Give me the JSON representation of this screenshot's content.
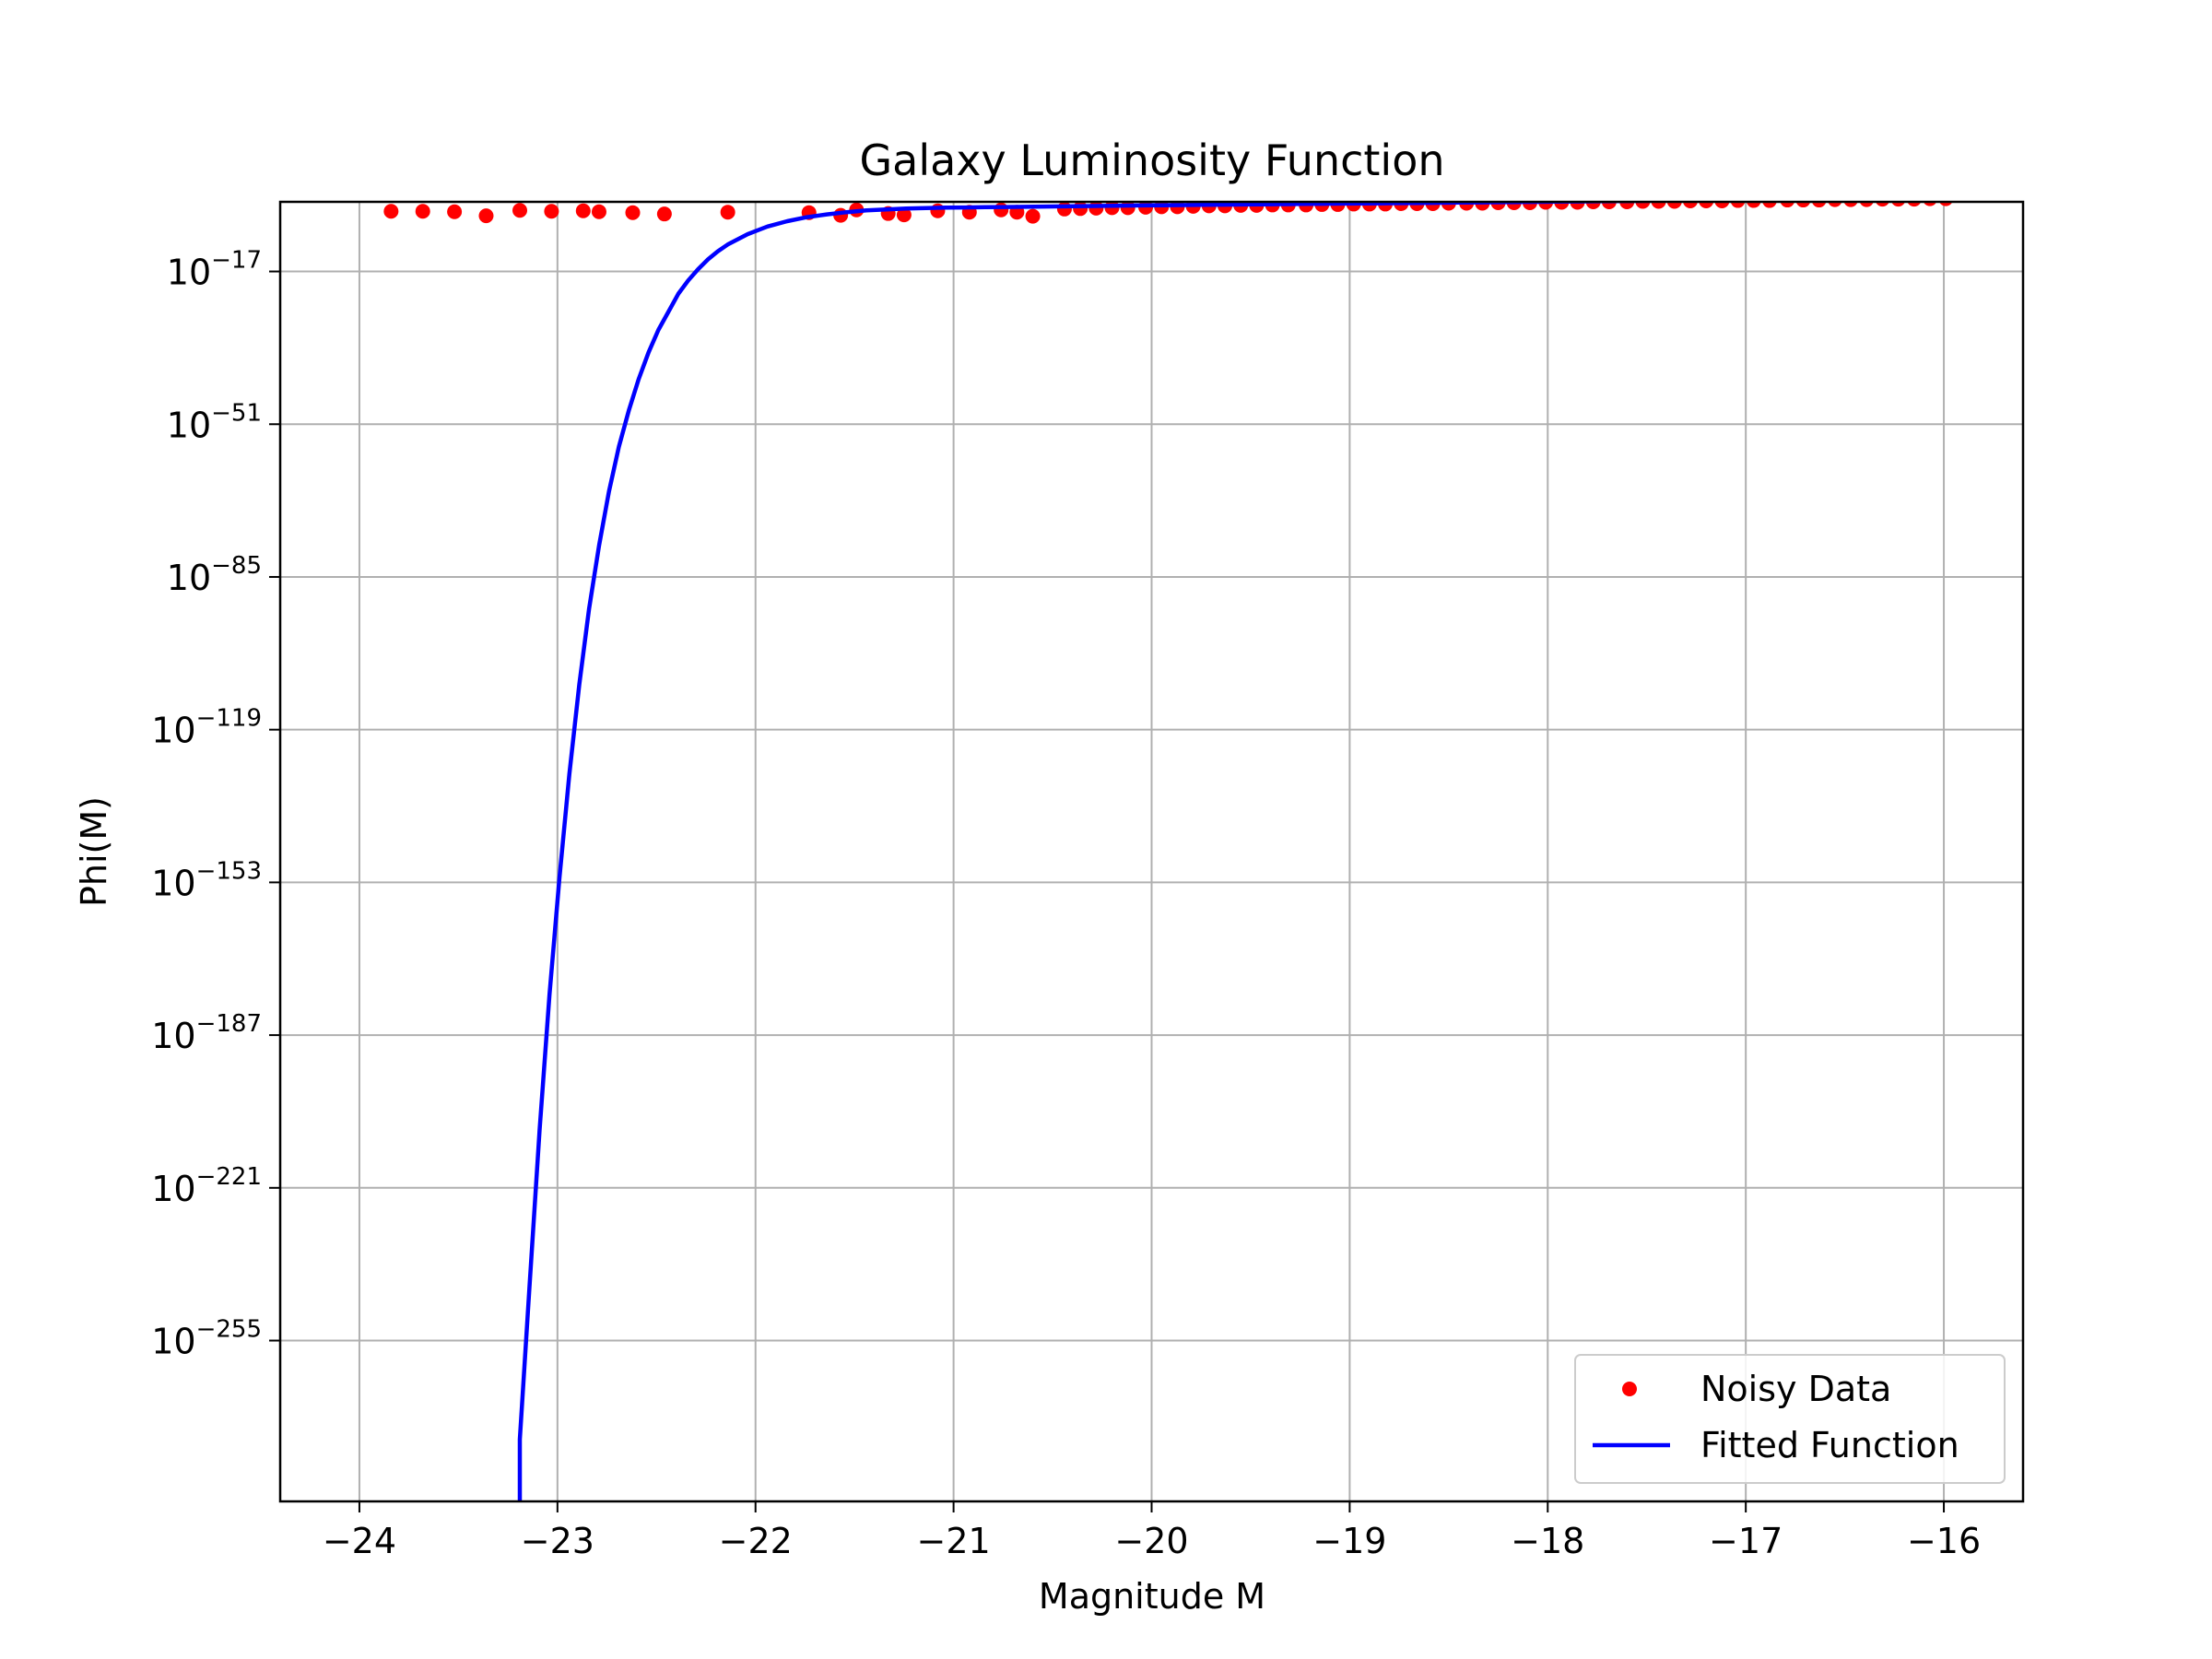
{
  "chart_data": {
    "type": "scatter",
    "title": "Galaxy Luminosity Function",
    "xlabel": "Magnitude M",
    "ylabel": "Phi(M)",
    "xlim": [
      -24.4,
      -15.6
    ],
    "x_ticks": [
      -24,
      -23,
      -22,
      -21,
      -20,
      -19,
      -18,
      -17,
      -16
    ],
    "y_scale": "log",
    "ylim_log10": [
      -290.8,
      -1.5
    ],
    "y_ticks_log10": [
      -17,
      -51,
      -85,
      -119,
      -153,
      -187,
      -221,
      -255
    ],
    "grid": true,
    "legend_position": "lower right",
    "series": [
      {
        "name": "Noisy Data",
        "kind": "scatter",
        "color": "#ff0000",
        "x": [
          -23.84,
          -23.68,
          -23.52,
          -23.36,
          -23.19,
          -23.03,
          -22.87,
          -22.79,
          -22.62,
          -22.46,
          -22.14,
          -21.73,
          -21.57,
          -21.49,
          -21.33,
          -21.25,
          -21.08,
          -20.92,
          -20.76,
          -20.68,
          -20.6,
          -20.44,
          -20.36,
          -20.28,
          -20.2,
          -20.12,
          -20.03,
          -19.95,
          -19.87,
          -19.79,
          -19.71,
          -19.63,
          -19.55,
          -19.47,
          -19.39,
          -19.31,
          -19.22,
          -19.14,
          -19.06,
          -18.98,
          -18.9,
          -18.82,
          -18.74,
          -18.66,
          -18.58,
          -18.5,
          -18.41,
          -18.33,
          -18.25,
          -18.17,
          -18.09,
          -18.01,
          -17.93,
          -17.85,
          -17.77,
          -17.69,
          -17.6,
          -17.52,
          -17.44,
          -17.36,
          -17.28,
          -17.2,
          -17.12,
          -17.04,
          -16.96,
          -16.88,
          -16.79,
          -16.71,
          -16.63,
          -16.55,
          -16.47,
          -16.39,
          -16.31,
          -16.23,
          -16.15,
          -16.07,
          -15.99
        ],
        "log10_y": [
          -3.6,
          -3.6,
          -3.7,
          -4.6,
          -3.4,
          -3.6,
          -3.5,
          -3.7,
          -3.9,
          -4.2,
          -3.8,
          -3.9,
          -4.5,
          -3.3,
          -4.1,
          -4.4,
          -3.5,
          -3.8,
          -3.3,
          -3.8,
          -4.7,
          -3.1,
          -3.0,
          -2.9,
          -2.8,
          -2.8,
          -2.7,
          -2.6,
          -2.6,
          -2.5,
          -2.4,
          -2.4,
          -2.3,
          -2.3,
          -2.2,
          -2.2,
          -2.2,
          -2.1,
          -2.1,
          -2.0,
          -2.0,
          -2.0,
          -1.9,
          -1.9,
          -1.9,
          -1.8,
          -1.8,
          -1.8,
          -1.7,
          -1.7,
          -1.7,
          -1.6,
          -1.6,
          -1.6,
          -1.5,
          -1.5,
          -1.5,
          -1.4,
          -1.4,
          -1.4,
          -1.3,
          -1.3,
          -1.3,
          -1.2,
          -1.2,
          -1.2,
          -1.1,
          -1.1,
          -1.1,
          -1.0,
          -1.0,
          -1.0,
          -0.9,
          -0.9,
          -0.9,
          -0.8,
          -0.8
        ]
      },
      {
        "name": "Fitted Function",
        "kind": "line",
        "color": "#0000ff",
        "x": [
          -23.19,
          -23.19,
          -23.14,
          -23.09,
          -23.04,
          -22.99,
          -22.94,
          -22.89,
          -22.84,
          -22.79,
          -22.74,
          -22.69,
          -22.64,
          -22.59,
          -22.54,
          -22.49,
          -22.44,
          -22.39,
          -22.34,
          -22.29,
          -22.24,
          -22.19,
          -22.14,
          -22.04,
          -21.94,
          -21.84,
          -21.74,
          -21.64,
          -21.54,
          -21.44,
          -21.34,
          -21.24,
          -21.14,
          -21.04,
          -20.94,
          -20.84,
          -20.74,
          -20.64,
          -20.54,
          -20.44,
          -20.34,
          -20.24,
          -20.14,
          -20.04,
          -19.94,
          -19.84,
          -19.74,
          -19.64,
          -19.54,
          -19.44,
          -19.34,
          -19.24,
          -19.14,
          -19.04,
          -18.94,
          -18.84,
          -18.74,
          -18.64,
          -18.54,
          -18.44,
          -18.34,
          -18.24,
          -18.14,
          -18.04,
          -17.94,
          -17.84,
          -17.74,
          -17.64,
          -17.54,
          -17.44,
          -17.34,
          -17.24,
          -17.14,
          -17.04,
          -16.94,
          -16.84,
          -16.74,
          -16.64,
          -16.54,
          -16.44,
          -16.34,
          -16.24,
          -16.14,
          -16.04,
          -15.99
        ],
        "log10_y": [
          -290.8,
          -277.0,
          -242.0,
          -208.0,
          -178.0,
          -152.0,
          -129.0,
          -109.0,
          -92.0,
          -78.0,
          -66.0,
          -56.0,
          -48.0,
          -41.0,
          -35.0,
          -30.0,
          -26.0,
          -22.0,
          -19.0,
          -16.5,
          -14.3,
          -12.5,
          -11.0,
          -8.7,
          -7.0,
          -5.8,
          -4.9,
          -4.3,
          -3.8,
          -3.4,
          -3.2,
          -3.0,
          -2.9,
          -2.8,
          -2.75,
          -2.7,
          -2.65,
          -2.6,
          -2.55,
          -2.5,
          -2.45,
          -2.4,
          -2.35,
          -2.3,
          -2.26,
          -2.22,
          -2.18,
          -2.14,
          -2.1,
          -2.06,
          -2.02,
          -1.98,
          -1.94,
          -1.9,
          -1.86,
          -1.82,
          -1.78,
          -1.74,
          -1.7,
          -1.66,
          -1.62,
          -1.58,
          -1.54,
          -1.5,
          -1.46,
          -1.42,
          -1.38,
          -1.34,
          -1.3,
          -1.26,
          -1.22,
          -1.18,
          -1.14,
          -1.1,
          -1.06,
          -1.02,
          -0.98,
          -0.94,
          -0.9,
          -0.86,
          -0.82,
          -0.78,
          -0.74,
          -0.7,
          -0.68
        ]
      }
    ]
  }
}
